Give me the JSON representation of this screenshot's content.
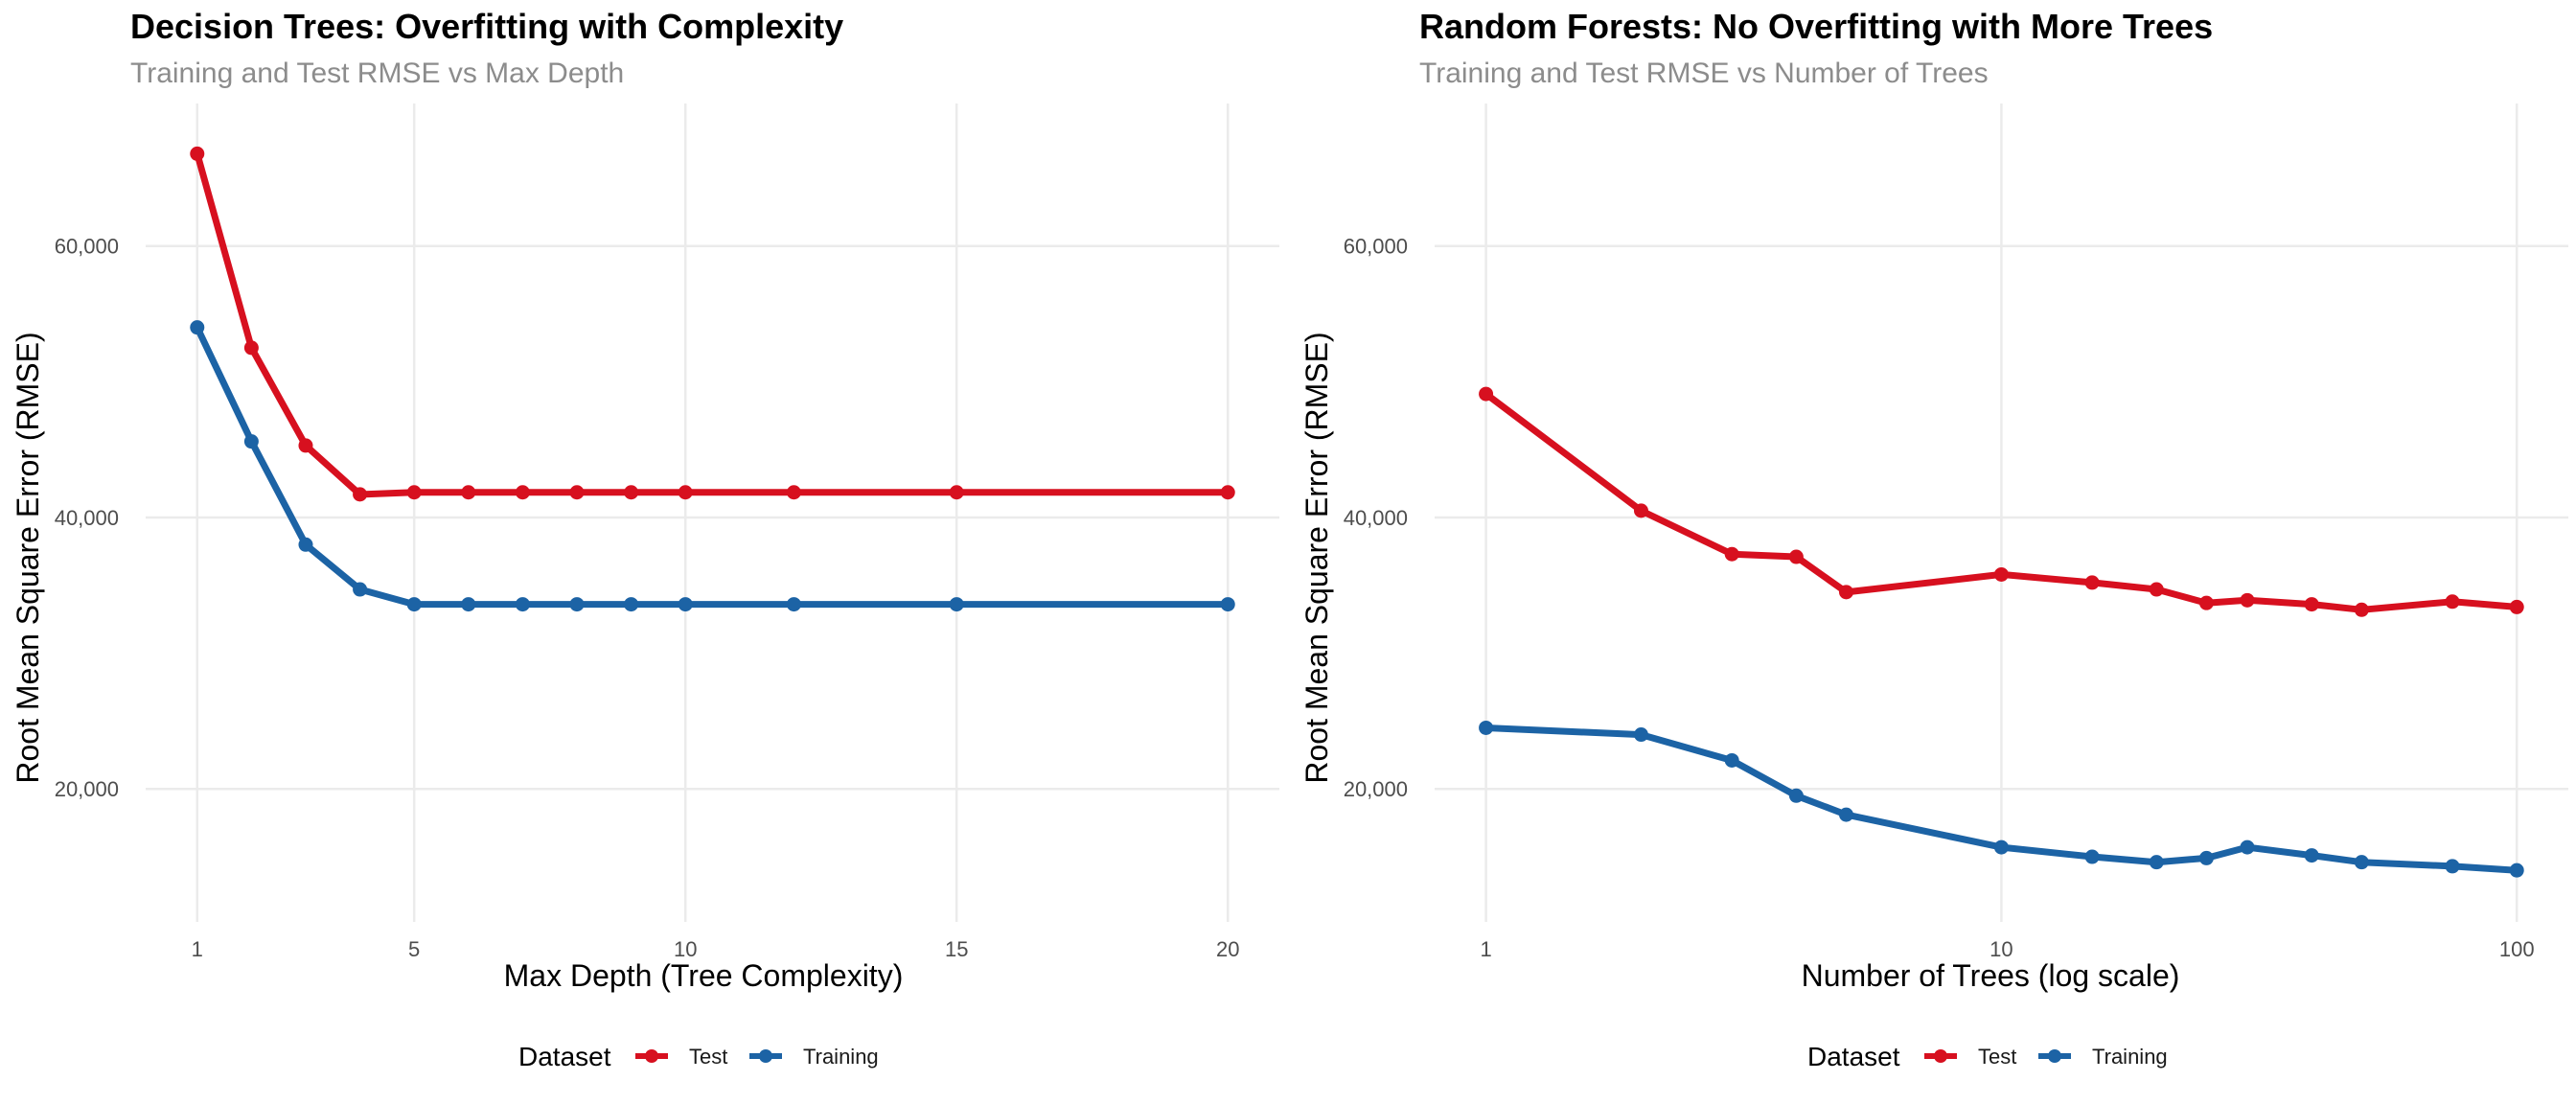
{
  "colors": {
    "test": "#d7101f",
    "training": "#1c63a5",
    "grid": "#ebebeb"
  },
  "legend": {
    "title": "Dataset",
    "entries": [
      "Test",
      "Training"
    ],
    "position": "bottom"
  },
  "chart_data": [
    {
      "type": "line",
      "title": "Decision Trees: Overfitting with Complexity",
      "subtitle": "Training and Test RMSE vs Max Depth",
      "xlabel": "Max Depth (Tree Complexity)",
      "ylabel": "Root Mean Square Error (RMSE)",
      "xscale": "linear",
      "xlim": [
        0.05,
        20.95
      ],
      "ylim": [
        10200,
        70500
      ],
      "xticks": [
        1,
        5,
        10,
        15,
        20
      ],
      "xtick_labels": [
        "1",
        "5",
        "10",
        "15",
        "20"
      ],
      "yticks": [
        20000,
        40000,
        60000
      ],
      "ytick_labels": [
        "20,000",
        "40,000",
        "60,000"
      ],
      "grid": true,
      "series": [
        {
          "name": "Test",
          "x": [
            1,
            2,
            3,
            4,
            5,
            6,
            7,
            8,
            9,
            10,
            12,
            15,
            20
          ],
          "values": [
            66800,
            52500,
            45300,
            41700,
            41850,
            41850,
            41850,
            41850,
            41850,
            41850,
            41850,
            41850,
            41850
          ]
        },
        {
          "name": "Training",
          "x": [
            1,
            2,
            3,
            4,
            5,
            6,
            7,
            8,
            9,
            10,
            12,
            15,
            20
          ],
          "values": [
            54000,
            45600,
            38000,
            34700,
            33600,
            33600,
            33600,
            33600,
            33600,
            33600,
            33600,
            33600,
            33600
          ]
        }
      ]
    },
    {
      "type": "line",
      "title": "Random Forests: No Overfitting with More Trees",
      "subtitle": "Training and Test RMSE vs Number of Trees",
      "xlabel": "Number of Trees (log scale)",
      "ylabel": "Root Mean Square Error (RMSE)",
      "xscale": "log",
      "xlim": [
        0.795,
        125.9
      ],
      "ylim": [
        10200,
        70500
      ],
      "xticks": [
        1,
        10,
        100
      ],
      "xtick_labels": [
        "1",
        "10",
        "100"
      ],
      "yticks": [
        20000,
        40000,
        60000
      ],
      "ytick_labels": [
        "20,000",
        "40,000",
        "60,000"
      ],
      "grid": true,
      "series": [
        {
          "name": "Test",
          "x": [
            1,
            2,
            3,
            4,
            5,
            10,
            15,
            20,
            25,
            30,
            40,
            50,
            75,
            100
          ],
          "values": [
            49100,
            40500,
            37300,
            37100,
            34500,
            35800,
            35200,
            34700,
            33700,
            33900,
            33600,
            33200,
            33800,
            33400
          ]
        },
        {
          "name": "Training",
          "x": [
            1,
            2,
            3,
            4,
            5,
            10,
            15,
            20,
            25,
            30,
            40,
            50,
            75,
            100
          ],
          "values": [
            24500,
            24000,
            22100,
            19500,
            18100,
            15700,
            15000,
            14600,
            14900,
            15700,
            15100,
            14600,
            14300,
            14000
          ]
        }
      ]
    }
  ]
}
